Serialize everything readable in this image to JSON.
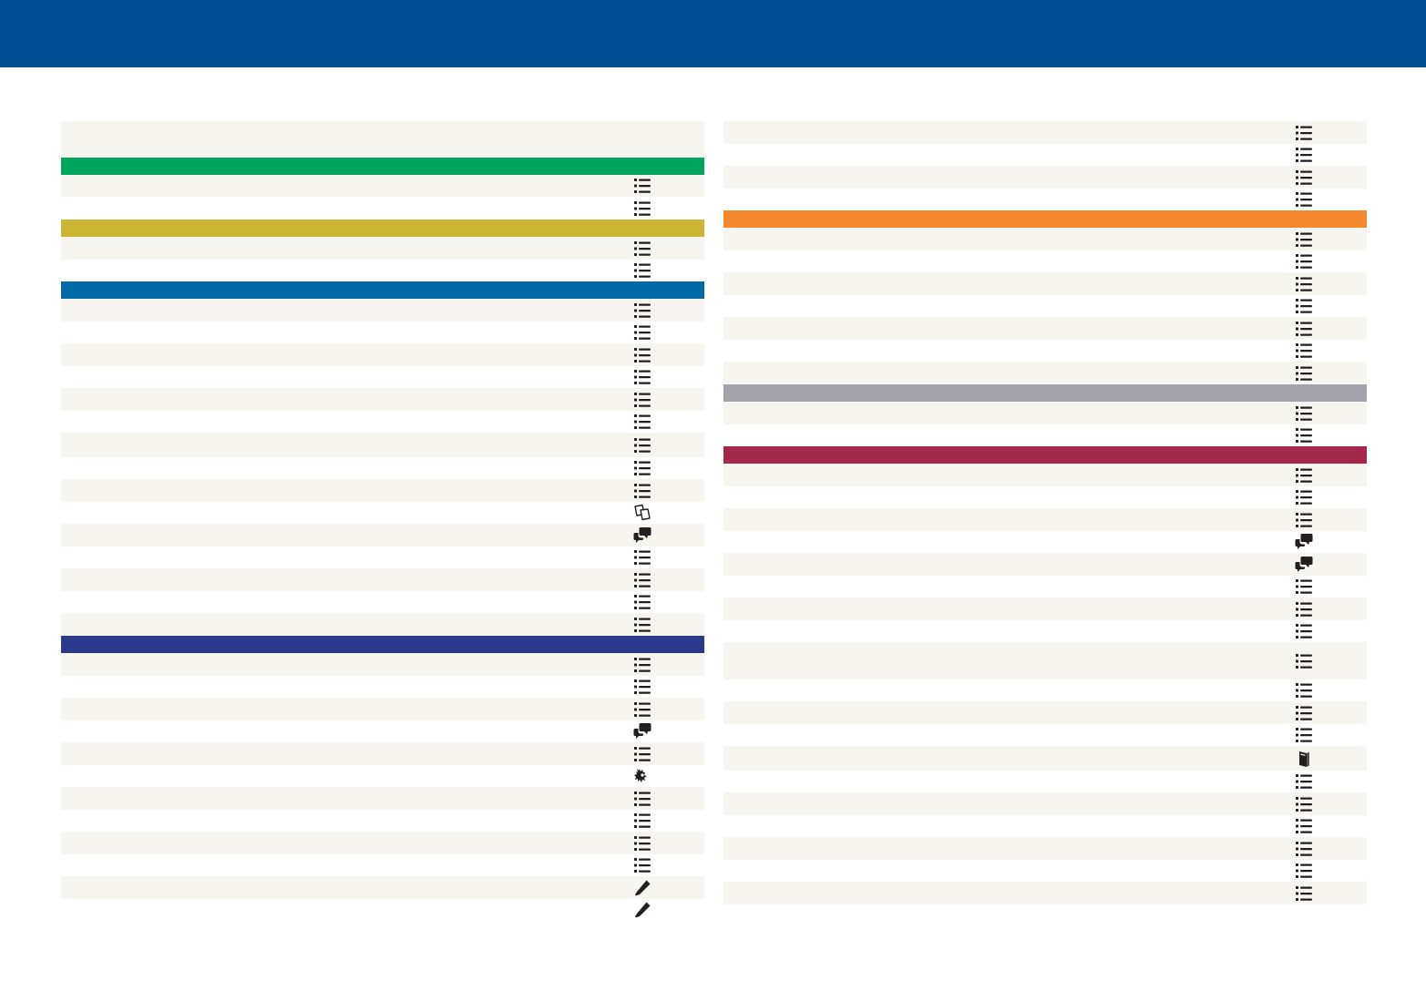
{
  "header": {
    "background_color": "#004d91"
  },
  "icon_labels": {
    "list": "",
    "notes": "",
    "chat": "",
    "crest": "",
    "pencil": "",
    "book": ""
  },
  "colors": {
    "row_shade": "#f7f5ef",
    "green": "#00a65d",
    "olive": "#cbb532",
    "blue": "#006aa9",
    "navy": "#2d3a8c",
    "orange": "#f5882d",
    "gray": "#a3a4ab",
    "maroon": "#a3284c",
    "icon": "#231f20"
  },
  "left_column": [
    {
      "kind": "intro",
      "h": 40,
      "icon": null
    },
    {
      "kind": "header",
      "h": 19,
      "color": "green"
    },
    {
      "kind": "row",
      "h": 24,
      "icon": "list"
    },
    {
      "kind": "row",
      "h": 25,
      "icon": "list"
    },
    {
      "kind": "header",
      "h": 19,
      "color": "olive"
    },
    {
      "kind": "row",
      "h": 25,
      "icon": "list"
    },
    {
      "kind": "row",
      "h": 24,
      "icon": "list"
    },
    {
      "kind": "header",
      "h": 19,
      "color": "blue"
    },
    {
      "kind": "row",
      "h": 25,
      "icon": "list"
    },
    {
      "kind": "row",
      "h": 24,
      "icon": "list"
    },
    {
      "kind": "row",
      "h": 25,
      "icon": "list"
    },
    {
      "kind": "row",
      "h": 24,
      "icon": "list"
    },
    {
      "kind": "row",
      "h": 25,
      "icon": "list"
    },
    {
      "kind": "row",
      "h": 24,
      "icon": "list"
    },
    {
      "kind": "row",
      "h": 27,
      "icon": "list"
    },
    {
      "kind": "row",
      "h": 24,
      "icon": "list"
    },
    {
      "kind": "row",
      "h": 25,
      "icon": "list"
    },
    {
      "kind": "row",
      "h": 24,
      "icon": "notes"
    },
    {
      "kind": "row",
      "h": 25,
      "icon": "chat"
    },
    {
      "kind": "row",
      "h": 24,
      "icon": "list"
    },
    {
      "kind": "row",
      "h": 25,
      "icon": "list"
    },
    {
      "kind": "row",
      "h": 24,
      "icon": "list"
    },
    {
      "kind": "row",
      "h": 25,
      "icon": "list"
    },
    {
      "kind": "header",
      "h": 19,
      "color": "navy"
    },
    {
      "kind": "row",
      "h": 25,
      "icon": "list"
    },
    {
      "kind": "row",
      "h": 24,
      "icon": "list"
    },
    {
      "kind": "row",
      "h": 25,
      "icon": "list"
    },
    {
      "kind": "row",
      "h": 24,
      "icon": "chat"
    },
    {
      "kind": "row",
      "h": 25,
      "icon": "list"
    },
    {
      "kind": "row",
      "h": 24,
      "icon": "crest"
    },
    {
      "kind": "row",
      "h": 25,
      "icon": "list"
    },
    {
      "kind": "row",
      "h": 24,
      "icon": "list"
    },
    {
      "kind": "row",
      "h": 25,
      "icon": "list"
    },
    {
      "kind": "row",
      "h": 24,
      "icon": "list"
    },
    {
      "kind": "row",
      "h": 25,
      "icon": "pencil"
    },
    {
      "kind": "row",
      "h": 24,
      "icon": "pencil"
    }
  ],
  "right_column": [
    {
      "kind": "row",
      "h": 25,
      "icon": "list"
    },
    {
      "kind": "row",
      "h": 24,
      "icon": "list"
    },
    {
      "kind": "row",
      "h": 25,
      "icon": "list"
    },
    {
      "kind": "row",
      "h": 24,
      "icon": "list"
    },
    {
      "kind": "header",
      "h": 19,
      "color": "orange"
    },
    {
      "kind": "row",
      "h": 25,
      "icon": "list"
    },
    {
      "kind": "row",
      "h": 24,
      "icon": "list"
    },
    {
      "kind": "row",
      "h": 25,
      "icon": "list"
    },
    {
      "kind": "row",
      "h": 24,
      "icon": "list"
    },
    {
      "kind": "row",
      "h": 25,
      "icon": "list"
    },
    {
      "kind": "row",
      "h": 24,
      "icon": "list"
    },
    {
      "kind": "row",
      "h": 25,
      "icon": "list"
    },
    {
      "kind": "header",
      "h": 19,
      "color": "gray"
    },
    {
      "kind": "row",
      "h": 25,
      "icon": "list"
    },
    {
      "kind": "row",
      "h": 24,
      "icon": "list"
    },
    {
      "kind": "header",
      "h": 19,
      "color": "maroon"
    },
    {
      "kind": "row",
      "h": 25,
      "icon": "list"
    },
    {
      "kind": "row",
      "h": 24,
      "icon": "list"
    },
    {
      "kind": "row",
      "h": 25,
      "icon": "list"
    },
    {
      "kind": "row",
      "h": 24,
      "icon": "chat"
    },
    {
      "kind": "row",
      "h": 25,
      "icon": "chat"
    },
    {
      "kind": "row",
      "h": 24,
      "icon": "list"
    },
    {
      "kind": "row",
      "h": 25,
      "icon": "list"
    },
    {
      "kind": "row",
      "h": 24,
      "icon": "list"
    },
    {
      "kind": "row",
      "h": 41,
      "icon": "list"
    },
    {
      "kind": "row",
      "h": 24,
      "icon": "list"
    },
    {
      "kind": "row",
      "h": 25,
      "icon": "list"
    },
    {
      "kind": "row",
      "h": 24,
      "icon": "list"
    },
    {
      "kind": "row",
      "h": 27,
      "icon": "book"
    },
    {
      "kind": "row",
      "h": 24,
      "icon": "list"
    },
    {
      "kind": "row",
      "h": 25,
      "icon": "list"
    },
    {
      "kind": "row",
      "h": 24,
      "icon": "list"
    },
    {
      "kind": "row",
      "h": 25,
      "icon": "list"
    },
    {
      "kind": "row",
      "h": 24,
      "icon": "list"
    },
    {
      "kind": "row",
      "h": 25,
      "icon": "list"
    }
  ]
}
